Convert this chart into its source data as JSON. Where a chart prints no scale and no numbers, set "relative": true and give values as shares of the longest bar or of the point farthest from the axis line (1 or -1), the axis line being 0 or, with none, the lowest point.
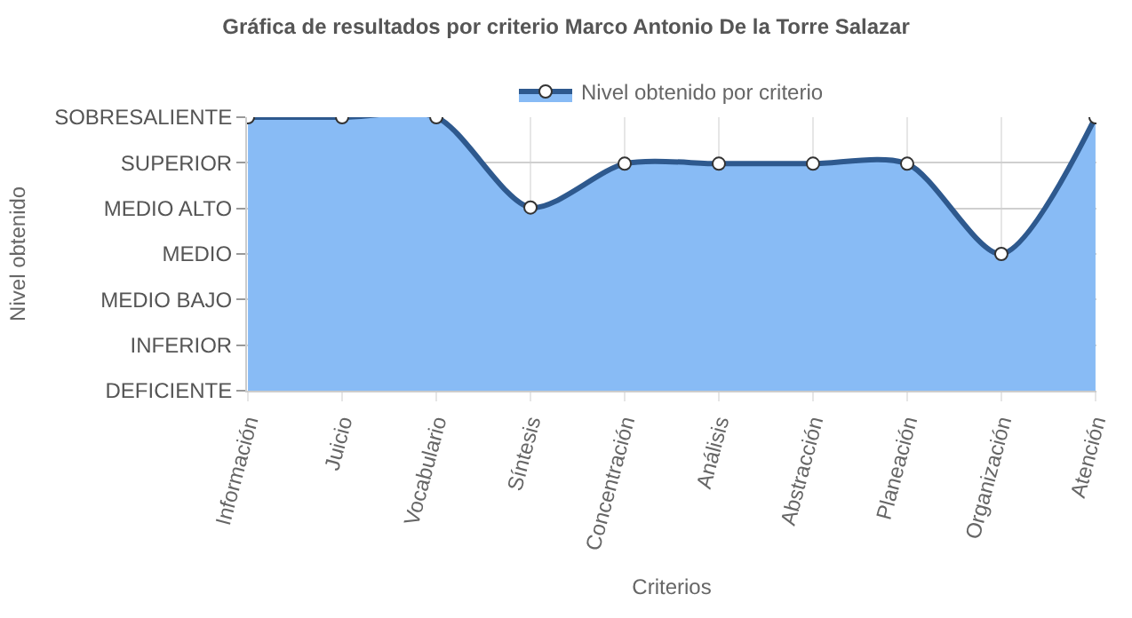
{
  "chart_data": {
    "type": "area",
    "title": "Gráfica de resultados por criterio Marco Antonio De la Torre Salazar",
    "xlabel": "Criterios",
    "annotations": [
      "Nivel obtenido"
    ],
    "categories": [
      "Información",
      "Juicio",
      "Vocabulario",
      "Síntesis",
      "Concentración",
      "Análisis",
      "Abstracción",
      "Planeación",
      "Organización",
      "Atención"
    ],
    "y_categories": [
      "SOBRESALIENTE",
      "SUPERIOR",
      "MEDIO ALTO",
      "MEDIO",
      "MEDIO BAJO",
      "INFERIOR",
      "DEFICIENTE"
    ],
    "relative": true,
    "series": [
      {
        "name": "Nivel obtenido por criterio",
        "color": "#88bbf5",
        "values": [
          1,
          1,
          1,
          0.67,
          0.83,
          0.83,
          0.83,
          0.83,
          0.5,
          1
        ]
      }
    ],
    "grid": true,
    "legend": "top",
    "marker": "circle",
    "line_style": "solid"
  }
}
